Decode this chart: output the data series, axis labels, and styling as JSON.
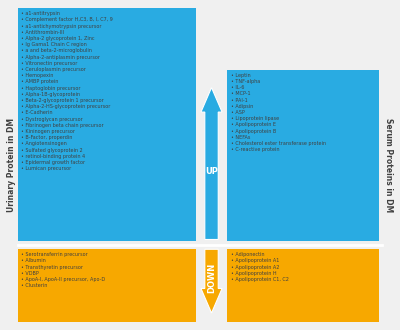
{
  "bg_color": "#f0f0f0",
  "blue": "#29ABE2",
  "gold": "#F7A800",
  "text_color": "#404040",
  "up_label": "UP",
  "down_label": "DOWN",
  "left_axis_label": "Urinary Protein in DM",
  "right_axis_label": "Serum Proteins in DM",
  "blue_up_left": [
    "• a1-antitrypsin",
    "• Complement factor H,C3, B, I, C7, 9",
    "• a1-antichymotrypsin precursor",
    "• Antithrombin-III",
    "• Alpha-2 glycoprotein 1, Zinc",
    "• Ig Gama1 Chain C region",
    "• a and beta-2-microglobulin",
    "• Alpha-2-antiplasmin precursor",
    "• Vitronectin precursor",
    "• Ceruloplasmin precursor",
    "• Hemopexin",
    "• AMBP protein",
    "• Haptoglobin precursor",
    "• Alpha-1B-glycoprotein",
    "• Beta-2-glycoprotein 1 precursor",
    "• Alpha-2-HS-glycoprotein precursor",
    "• E-Cadherin",
    "• Dystroglycan precursor",
    "• Fibrinogen beta chain precursor",
    "• Kininogen precursor",
    "• B-Factor, properdin",
    "• Angiotensinogen",
    "• Sulfated glycoprotein 2",
    "• retinol-binding protein 4",
    "• Epidermal growth factor",
    "• Lumican precursor"
  ],
  "blue_up_right": [
    "• Leptin",
    "• TNF-alpha",
    "• IL-6",
    "• MCP-1",
    "• PAI-1",
    "• Adipsin",
    "• ASP",
    "• Lipoprotein lipase",
    "• Apolipoprotein E",
    "• Apolipoprotein B",
    "• NEFAs",
    "• Cholesterol ester transferase protein",
    "• C-reactive protein"
  ],
  "gold_down_left": [
    "• Serotransferrin precursor",
    "• Albumin",
    "• Transthyretin precursor",
    "• VDBP",
    "• ApoA-I, ApoA-II precursor, Apo-D",
    "• Clusterin"
  ],
  "gold_down_right": [
    "• Adiponectin",
    "• Apolipoprotein A1",
    "• Apolipoprotein A2",
    "• Apolipoprotein H",
    "• Apolipoprotein C1, C2"
  ],
  "figsize": [
    4.0,
    3.3
  ],
  "dpi": 100
}
